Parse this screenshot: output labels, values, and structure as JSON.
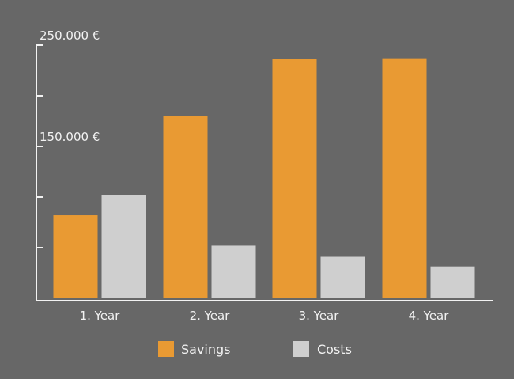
{
  "chart_data": {
    "type": "bar",
    "categories": [
      "1. Year",
      "2. Year",
      "3. Year",
      "4. Year"
    ],
    "series": [
      {
        "name": "Savings",
        "color": "#e99a33",
        "values": [
          82000,
          180000,
          236000,
          237000
        ]
      },
      {
        "name": "Costs",
        "color": "#cfcfcf",
        "values": [
          102000,
          52000,
          41000,
          31500
        ]
      }
    ],
    "y_tick_labels": [
      {
        "value": 250000,
        "label": "250.000 €"
      },
      {
        "value": 150000,
        "label": "150.000 €"
      }
    ],
    "y_ticks": [
      50000,
      100000,
      150000,
      200000,
      250000
    ],
    "ylim": [
      0,
      250000
    ],
    "legend_position": "bottom"
  }
}
